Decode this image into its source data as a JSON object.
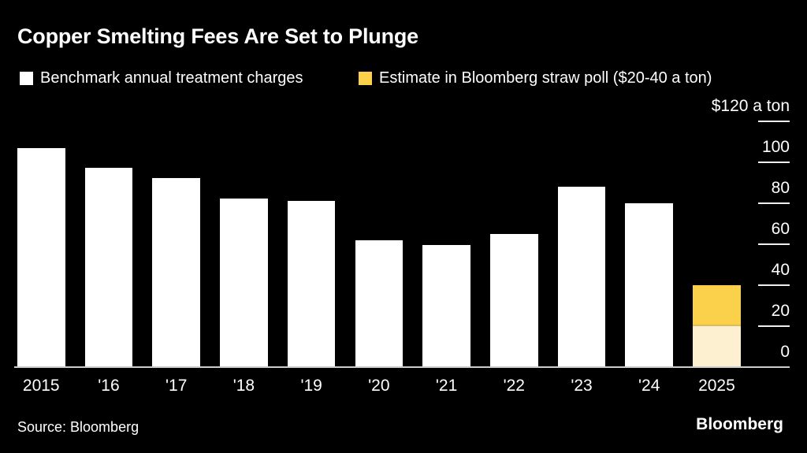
{
  "chart_data": {
    "type": "bar",
    "title": "Copper Smelting Fees Are Set to Plunge",
    "categories": [
      "2015",
      "'16",
      "'17",
      "'18",
      "'19",
      "'20",
      "'21",
      "'22",
      "'23",
      "'24",
      "2025"
    ],
    "series": [
      {
        "name": "Benchmark annual treatment charges",
        "values": [
          107,
          97.5,
          92.5,
          82.5,
          81,
          62,
          59.5,
          65,
          88,
          80,
          null
        ]
      },
      {
        "name": "Estimate in Bloomberg straw poll ($20-40 a ton)",
        "year": "2025",
        "range": {
          "low": 20,
          "high": 40
        }
      }
    ],
    "unit_label": "$120 a ton",
    "ylim": [
      0,
      120
    ],
    "yticks": [
      120,
      100,
      80,
      60,
      40,
      20,
      0
    ],
    "xlabel": "",
    "ylabel": "",
    "grid": false,
    "legend_position": "top"
  },
  "legend": {
    "items": [
      {
        "label": "Benchmark annual treatment charges",
        "swatch": "white-square"
      },
      {
        "label": "Estimate in Bloomberg straw poll ($20-40 a ton)",
        "swatch": "gold-square"
      }
    ]
  },
  "footer": {
    "source": "Source: Bloomberg",
    "logo": "Bloomberg"
  },
  "colors": {
    "background": "#000000",
    "bar_benchmark": "#FFFFFF",
    "bar_estimate_gold": "#FBD14B",
    "bar_estimate_cream": "#FCF0D1",
    "estimate_divider": "#D9BC5F",
    "axis_line": "#CCCCCC",
    "tick_line": "#EFEFEF",
    "text": "#FFFFFF"
  }
}
